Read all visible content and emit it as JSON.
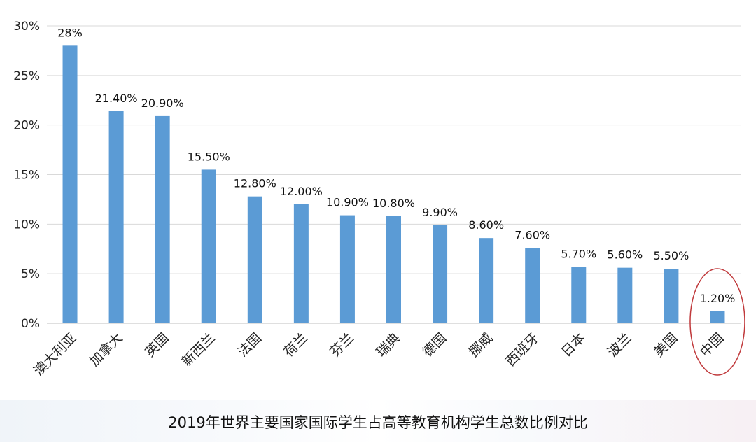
{
  "chart_data": {
    "type": "bar",
    "title": "2019年世界主要国家国际学生占高等教育机构学生总数比例对比",
    "categories": [
      "澳大利亚",
      "加拿大",
      "英国",
      "新西兰",
      "法国",
      "荷兰",
      "芬兰",
      "瑞典",
      "德国",
      "挪威",
      "西班牙",
      "日本",
      "波兰",
      "美国",
      "中国"
    ],
    "values": [
      28,
      21.4,
      20.9,
      15.5,
      12.8,
      12.0,
      10.9,
      10.8,
      9.9,
      8.6,
      7.6,
      5.7,
      5.6,
      5.5,
      1.2
    ],
    "data_labels": [
      "28%",
      "21.40%",
      "20.90%",
      "15.50%",
      "12.80%",
      "12.00%",
      "10.90%",
      "10.80%",
      "9.90%",
      "8.60%",
      "7.60%",
      "5.70%",
      "5.60%",
      "5.50%",
      "1.20%"
    ],
    "ylim": [
      0,
      30
    ],
    "y_ticks": [
      0,
      5,
      10,
      15,
      20,
      25,
      30
    ],
    "y_tick_labels": [
      "0%",
      "5%",
      "10%",
      "15%",
      "20%",
      "25%",
      "30%"
    ],
    "xlabel": "",
    "ylabel": "",
    "grid": true,
    "bar_color": "#5b9bd5",
    "highlight_category": "中国",
    "highlight_color": "#c0393b"
  }
}
